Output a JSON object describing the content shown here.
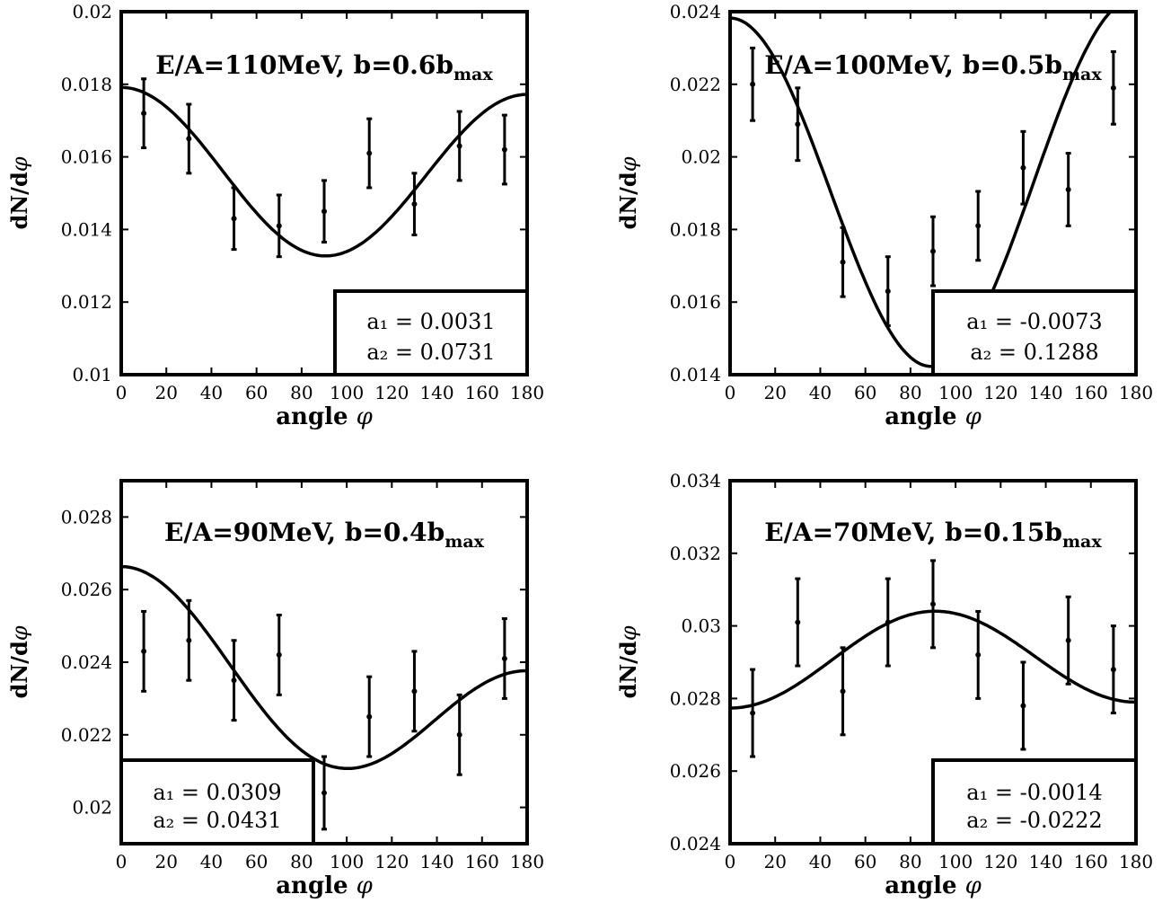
{
  "chart_data": [
    {
      "type": "scatter",
      "title": "E/A=110MeV, b=0.6b",
      "title_sub": "max",
      "xlabel": "angle",
      "xlabel_symbol": "φ",
      "ylabel": "dN/d",
      "ylabel_symbol": "φ",
      "xlim": [
        0,
        180
      ],
      "ylim": [
        0.01,
        0.02
      ],
      "xticks": [
        "0",
        "20",
        "40",
        "60",
        "80",
        "100",
        "120",
        "140",
        "160",
        "180"
      ],
      "yticks": [
        "0.01",
        "0.012",
        "0.014",
        "0.016",
        "0.018",
        "0.02"
      ],
      "points": {
        "x": [
          10,
          30,
          50,
          70,
          90,
          110,
          130,
          150,
          170
        ],
        "y": [
          0.0172,
          0.0165,
          0.0143,
          0.0141,
          0.0145,
          0.0161,
          0.0147,
          0.0163,
          0.0162
        ],
        "err": [
          0.00095,
          0.00095,
          0.00085,
          0.00085,
          0.00085,
          0.00095,
          0.00085,
          0.00095,
          0.00095
        ]
      },
      "fit": {
        "a1": 0.0031,
        "a2": 0.0731
      },
      "legend_position": "bottom-right",
      "annotation": [
        "a₁ = 0.0031",
        "a₂ = 0.0731"
      ]
    },
    {
      "type": "scatter",
      "title": "E/A=100MeV, b=0.5b",
      "title_sub": "max",
      "xlabel": "angle",
      "xlabel_symbol": "φ",
      "ylabel": "dN/d",
      "ylabel_symbol": "φ",
      "xlim": [
        0,
        180
      ],
      "ylim": [
        0.014,
        0.024
      ],
      "xticks": [
        "0",
        "20",
        "40",
        "60",
        "80",
        "100",
        "120",
        "140",
        "160",
        "180"
      ],
      "yticks": [
        "0.014",
        "0.016",
        "0.018",
        "0.02",
        "0.022",
        "0.024"
      ],
      "points": {
        "x": [
          10,
          30,
          50,
          70,
          90,
          110,
          130,
          150,
          170
        ],
        "y": [
          0.022,
          0.0209,
          0.0171,
          0.0163,
          0.0174,
          0.0181,
          0.0197,
          0.0191,
          0.0219
        ],
        "err": [
          0.001,
          0.001,
          0.00095,
          0.00095,
          0.00095,
          0.00095,
          0.001,
          0.001,
          0.001
        ]
      },
      "fit": {
        "a1": -0.0073,
        "a2": 0.1288
      },
      "legend_position": "bottom-right",
      "annotation": [
        "a₁ = -0.0073",
        "a₂ = 0.1288"
      ]
    },
    {
      "type": "scatter",
      "title": "E/A=90MeV, b=0.4b",
      "title_sub": "max",
      "xlabel": "angle",
      "xlabel_symbol": "φ",
      "ylabel": "dN/d",
      "ylabel_symbol": "φ",
      "xlim": [
        0,
        180
      ],
      "ylim": [
        0.019,
        0.029
      ],
      "xticks": [
        "0",
        "20",
        "40",
        "60",
        "80",
        "100",
        "120",
        "140",
        "160",
        "180"
      ],
      "yticks": [
        "0.02",
        "0.022",
        "0.024",
        "0.026",
        "0.028"
      ],
      "yticks_values": [
        0.02,
        0.022,
        0.024,
        0.026,
        0.028
      ],
      "points": {
        "x": [
          10,
          30,
          50,
          70,
          90,
          110,
          130,
          150,
          170
        ],
        "y": [
          0.0243,
          0.0246,
          0.0235,
          0.0242,
          0.0204,
          0.0225,
          0.0232,
          0.022,
          0.0241
        ],
        "err": [
          0.0011,
          0.0011,
          0.0011,
          0.0011,
          0.001,
          0.0011,
          0.0011,
          0.0011,
          0.0011
        ]
      },
      "fit": {
        "a1": 0.0309,
        "a2": 0.0431
      },
      "legend_position": "bottom-left",
      "annotation": [
        "a₁ = 0.0309",
        "a₂ = 0.0431"
      ]
    },
    {
      "type": "scatter",
      "title": "E/A=70MeV, b=0.15b",
      "title_sub": "max",
      "xlabel": "angle",
      "xlabel_symbol": "φ",
      "ylabel": "dN/d",
      "ylabel_symbol": "φ",
      "xlim": [
        0,
        180
      ],
      "ylim": [
        0.024,
        0.034
      ],
      "xticks": [
        "0",
        "20",
        "40",
        "60",
        "80",
        "100",
        "120",
        "140",
        "160",
        "180"
      ],
      "yticks": [
        "0.024",
        "0.026",
        "0.028",
        "0.03",
        "0.032",
        "0.034"
      ],
      "points": {
        "x": [
          10,
          30,
          50,
          70,
          90,
          110,
          130,
          150,
          170
        ],
        "y": [
          0.0276,
          0.0301,
          0.0282,
          0.0301,
          0.0306,
          0.0292,
          0.0278,
          0.0296,
          0.0288
        ],
        "err": [
          0.0012,
          0.0012,
          0.0012,
          0.0012,
          0.0012,
          0.0012,
          0.0012,
          0.0012,
          0.0012
        ]
      },
      "fit": {
        "a1": -0.0014,
        "a2": -0.0222
      },
      "legend_position": "bottom-right",
      "annotation": [
        "a₁ = -0.0014",
        "a₂ = -0.0222"
      ]
    }
  ]
}
